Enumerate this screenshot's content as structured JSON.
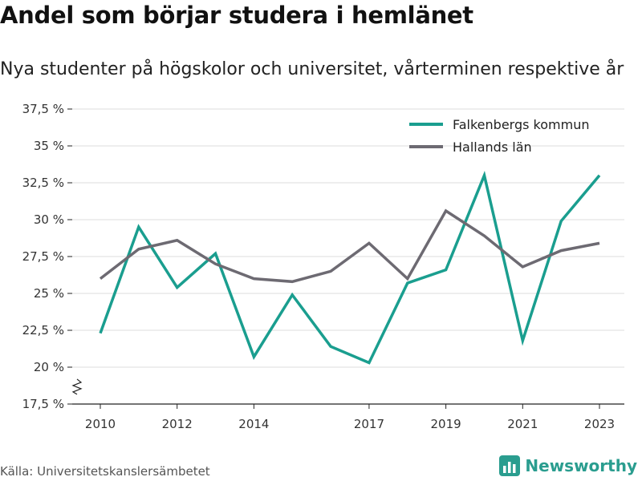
{
  "chart_data": {
    "type": "line",
    "title": "Andel som börjar studera i hemlänet",
    "subtitle": "Nya studenter på högskolor och universitet, vårterminen respektive år",
    "xlabel": "",
    "ylabel": "",
    "x": [
      2010,
      2011,
      2012,
      2013,
      2014,
      2015,
      2016,
      2017,
      2018,
      2019,
      2020,
      2021,
      2022,
      2023
    ],
    "x_ticks": [
      "2010",
      "2012",
      "2014",
      "2017",
      "2019",
      "2021",
      "2023"
    ],
    "ylim": [
      17.5,
      37.5
    ],
    "y_ticks": [
      "17,5 %",
      "20 %",
      "22,5 %",
      "25 %",
      "27,5 %",
      "30 %",
      "32,5 %",
      "35 %",
      "37,5 %"
    ],
    "y_axis_break": true,
    "grid": true,
    "legend_position": "top-right",
    "series": [
      {
        "name": "Falkenbergs kommun",
        "color": "#1a9e8f",
        "values": [
          22.3,
          29.5,
          25.4,
          27.7,
          20.7,
          24.9,
          21.4,
          20.3,
          25.7,
          26.6,
          33.0,
          21.8,
          29.9,
          33.0
        ]
      },
      {
        "name": "Hallands län",
        "color": "#6d6a72",
        "values": [
          26.0,
          28.0,
          28.6,
          27.0,
          26.0,
          25.8,
          26.5,
          28.4,
          26.0,
          30.6,
          28.9,
          26.8,
          27.9,
          28.4
        ]
      }
    ]
  },
  "footer": {
    "source": "Källa: Universitetskanslersämbetet",
    "brand": "Newsworthy"
  },
  "colors": {
    "brand": "#2a9d8f",
    "grid": "#dcdcdc",
    "axis": "#222222"
  },
  "icons": {
    "logo": "bar-chart-icon",
    "axis_break": "axis-break-icon"
  }
}
